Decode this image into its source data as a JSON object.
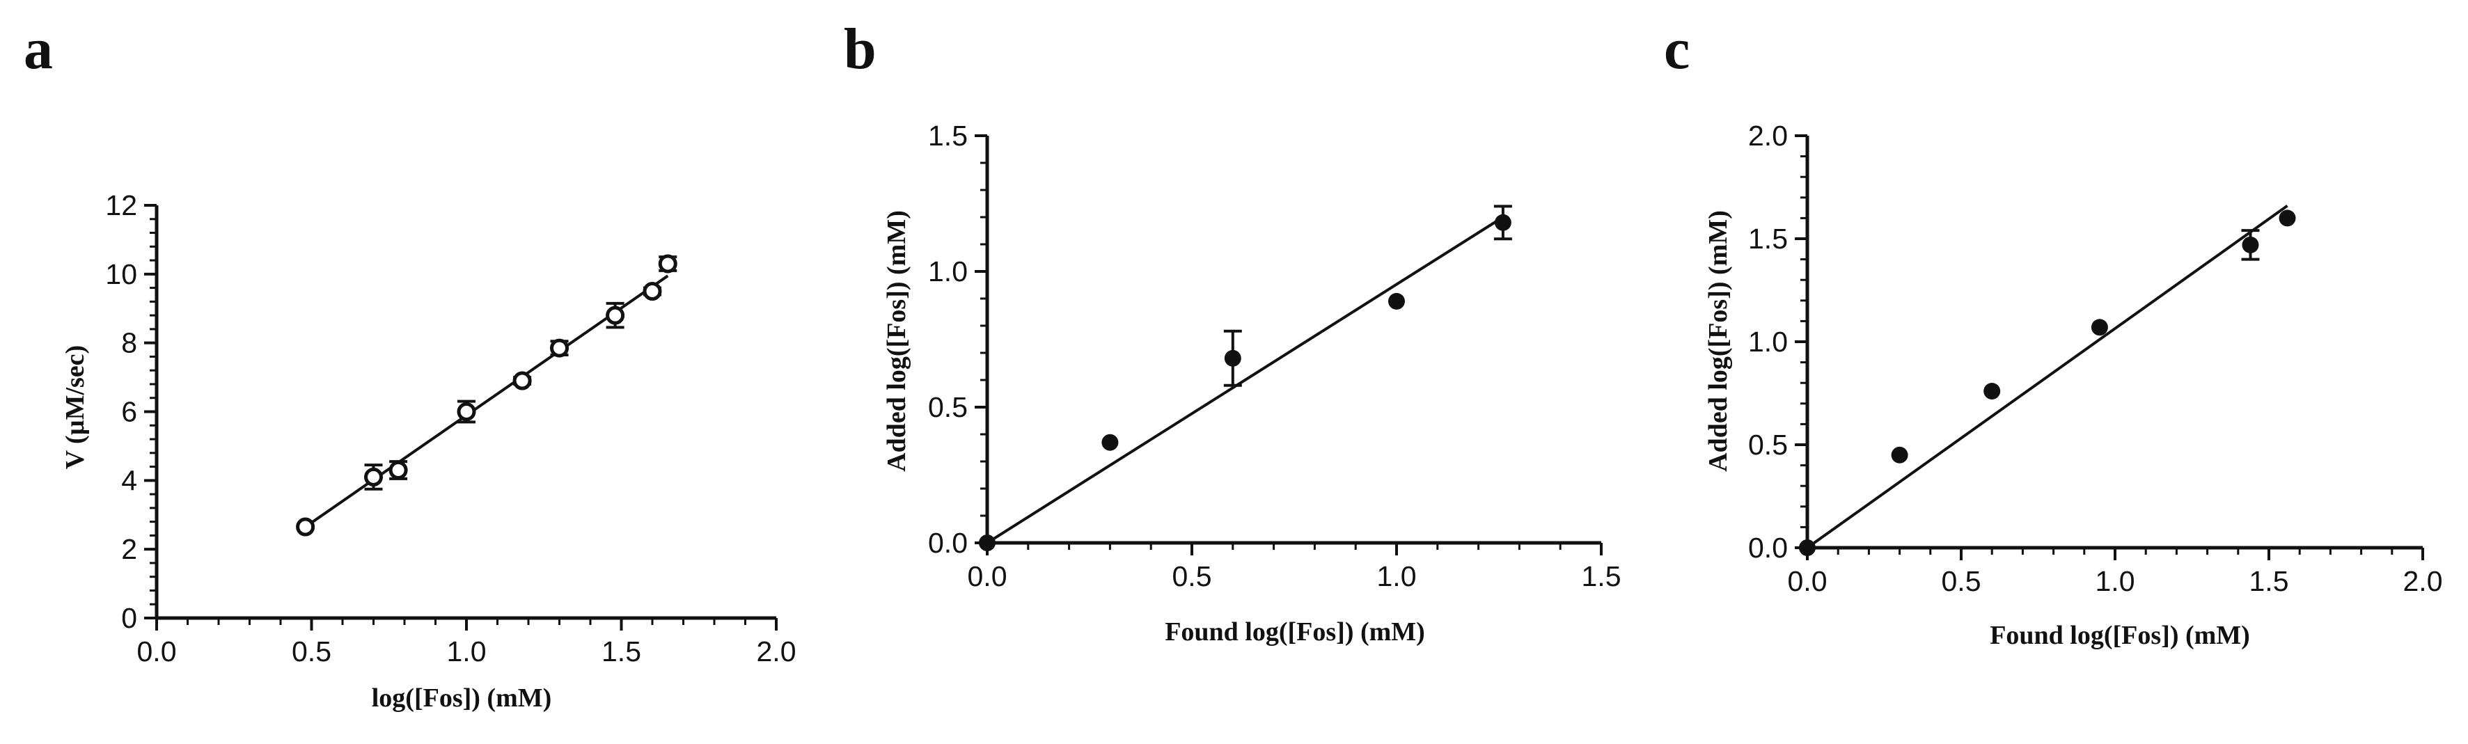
{
  "chart_data": [
    {
      "panel": "a",
      "type": "scatter",
      "xlabel": "log([Fos]) (mM)",
      "ylabel": "V (µM/sec)",
      "xlim": [
        0.0,
        2.0
      ],
      "ylim": [
        0,
        12
      ],
      "x_ticks": [
        "0.0",
        "0.5",
        "1.0",
        "1.5",
        "2.0"
      ],
      "y_ticks": [
        "0",
        "2",
        "4",
        "6",
        "8",
        "10",
        "12"
      ],
      "x_tick_values": [
        0.0,
        0.5,
        1.0,
        1.5,
        2.0
      ],
      "y_tick_values": [
        0,
        2,
        4,
        6,
        8,
        10,
        12
      ],
      "marker": "open-circle",
      "grid": false,
      "points": [
        {
          "x": 0.48,
          "y": 2.65,
          "err": 0.05
        },
        {
          "x": 0.7,
          "y": 4.1,
          "err": 0.35
        },
        {
          "x": 0.78,
          "y": 4.3,
          "err": 0.25
        },
        {
          "x": 1.0,
          "y": 6.0,
          "err": 0.3
        },
        {
          "x": 1.18,
          "y": 6.9,
          "err": 0.1
        },
        {
          "x": 1.3,
          "y": 7.85,
          "err": 0.2
        },
        {
          "x": 1.48,
          "y": 8.8,
          "err": 0.35
        },
        {
          "x": 1.6,
          "y": 9.5,
          "err": 0.1
        },
        {
          "x": 1.65,
          "y": 10.3,
          "err": 0.2
        }
      ],
      "fit_line": {
        "x": [
          0.48,
          1.65
        ],
        "y": [
          2.65,
          9.95
        ]
      }
    },
    {
      "panel": "b",
      "type": "scatter",
      "xlabel": "Found log([Fos]) (mM)",
      "ylabel": "Added log([Fos]) (mM)",
      "xlim": [
        0.0,
        1.5
      ],
      "ylim": [
        0.0,
        1.5
      ],
      "x_ticks": [
        "0.0",
        "0.5",
        "1.0",
        "1.5"
      ],
      "y_ticks": [
        "0.0",
        "0.5",
        "1.0",
        "1.5"
      ],
      "x_tick_values": [
        0.0,
        0.5,
        1.0,
        1.5
      ],
      "y_tick_values": [
        0.0,
        0.5,
        1.0,
        1.5
      ],
      "marker": "filled-circle",
      "grid": false,
      "points": [
        {
          "x": 0.0,
          "y": 0.0,
          "err": 0
        },
        {
          "x": 0.3,
          "y": 0.37,
          "err": 0
        },
        {
          "x": 0.6,
          "y": 0.68,
          "err": 0.1
        },
        {
          "x": 1.0,
          "y": 0.89,
          "err": 0
        },
        {
          "x": 1.26,
          "y": 1.18,
          "err": 0.06
        }
      ],
      "fit_line": {
        "x": [
          0.0,
          1.26
        ],
        "y": [
          0.0,
          1.2
        ]
      }
    },
    {
      "panel": "c",
      "type": "scatter",
      "xlabel": "Found log([Fos]) (mM)",
      "ylabel": "Added log([Fos]) (mM)",
      "xlim": [
        0.0,
        2.0
      ],
      "ylim": [
        0.0,
        2.0
      ],
      "x_ticks": [
        "0.0",
        "0.5",
        "1.0",
        "1.5",
        "2.0"
      ],
      "y_ticks": [
        "0.0",
        "0.5",
        "1.0",
        "1.5",
        "2.0"
      ],
      "x_tick_values": [
        0.0,
        0.5,
        1.0,
        1.5,
        2.0
      ],
      "y_tick_values": [
        0.0,
        0.5,
        1.0,
        1.5,
        2.0
      ],
      "marker": "filled-circle",
      "grid": false,
      "points": [
        {
          "x": 0.0,
          "y": 0.0,
          "err": 0
        },
        {
          "x": 0.3,
          "y": 0.45,
          "err": 0
        },
        {
          "x": 0.6,
          "y": 0.76,
          "err": 0
        },
        {
          "x": 0.95,
          "y": 1.07,
          "err": 0
        },
        {
          "x": 1.44,
          "y": 1.47,
          "err": 0.07
        },
        {
          "x": 1.56,
          "y": 1.6,
          "err": 0
        }
      ],
      "fit_line": {
        "x": [
          0.0,
          1.56
        ],
        "y": [
          0.0,
          1.66
        ]
      }
    }
  ],
  "colors": {
    "ink": "#111111",
    "background": "#ffffff"
  }
}
